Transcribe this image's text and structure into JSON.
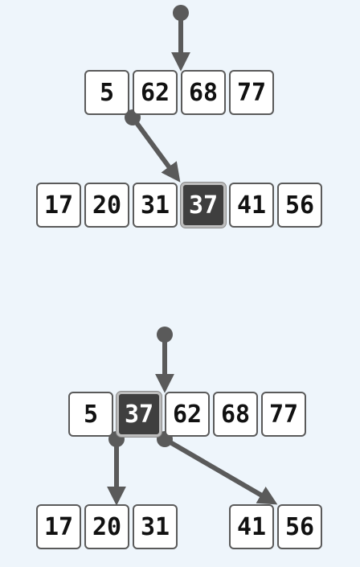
{
  "diagram": {
    "before": {
      "parent": [
        "5",
        "62",
        "68",
        "77"
      ],
      "child": [
        "17",
        "20",
        "31",
        "37",
        "41",
        "56"
      ],
      "highlighted_key": "37"
    },
    "after": {
      "parent": [
        "5",
        "37",
        "62",
        "68",
        "77"
      ],
      "left_child": [
        "17",
        "20",
        "31"
      ],
      "right_child": [
        "41",
        "56"
      ],
      "highlighted_key": "37"
    },
    "colors": {
      "background": "#eef5fb",
      "edge": "#5a5a5a",
      "cell_fill": "#ffffff",
      "highlight_fill": "#3f3f3f"
    }
  }
}
